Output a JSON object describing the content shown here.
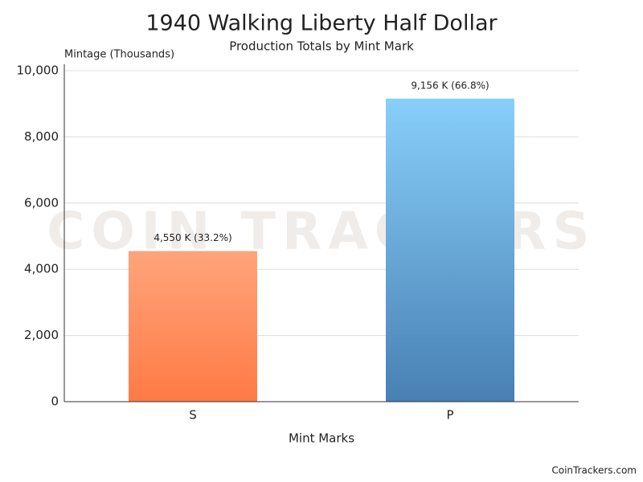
{
  "chart_data": {
    "type": "bar",
    "title": "1940 Walking Liberty Half Dollar",
    "subtitle": "Production Totals by Mint Mark",
    "y_label": "Mintage (Thousands)",
    "x_label": "Mint Marks",
    "source": "CoinTrackers.com",
    "watermark": "COIN TRACKERS",
    "categories": [
      "S",
      "P"
    ],
    "values": [
      4550,
      9156
    ],
    "value_labels": [
      "4,550 K (33.2%)",
      "9,156 K (66.8%)"
    ],
    "colors": [
      [
        "#ffa47c",
        "#ff7a45"
      ],
      [
        "#88cffa",
        "#4880b4"
      ]
    ],
    "ylim": [
      0,
      10000
    ],
    "yticks": [
      0,
      {
        "value": 2000,
        "label": "2,000"
      },
      {
        "value": 4000,
        "label": "4,000"
      },
      {
        "value": 6000,
        "label": "6,000"
      },
      {
        "value": 8000,
        "label": "8,000"
      },
      {
        "value": 10000,
        "label": "10,000"
      }
    ],
    "grid": true
  }
}
